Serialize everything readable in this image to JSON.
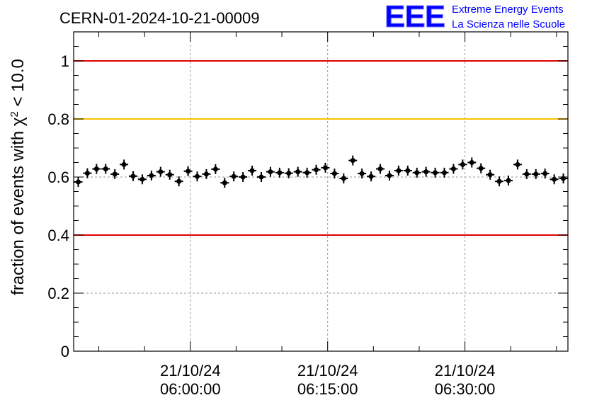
{
  "header": {
    "title": "CERN-01-2024-10-21-00009",
    "logo": {
      "letters": "EEE",
      "line1": "Extreme Energy Events",
      "line2": "La Scienza nelle Scuole",
      "color": "#0000ff"
    }
  },
  "chart_data": {
    "type": "scatter",
    "ylabel_main": "fraction of events with χ",
    "ylabel_sup": "2",
    "ylabel_tail": " < 10.0",
    "ylim": [
      0,
      1.1
    ],
    "yticks": [
      0,
      0.2,
      0.4,
      0.6,
      0.8,
      1
    ],
    "ytick_labels": [
      "0",
      "0.2",
      "0.4",
      "0.6",
      "0.8",
      "1"
    ],
    "xlim": [
      "2024-10-21 05:47:15",
      "2024-10-21 06:41:15"
    ],
    "xticks": [
      {
        "time": "2024-10-21 06:00:00",
        "label_date": "21/10/24",
        "label_time": "06:00:00"
      },
      {
        "time": "2024-10-21 06:15:00",
        "label_date": "21/10/24",
        "label_time": "06:15:00"
      },
      {
        "time": "2024-10-21 06:30:00",
        "label_date": "21/10/24",
        "label_time": "06:30:00"
      }
    ],
    "reference_lines": [
      {
        "y": 1.0,
        "color": "#e00000"
      },
      {
        "y": 0.8,
        "color": "#ffc000"
      },
      {
        "y": 0.4,
        "color": "#e00000"
      }
    ],
    "grid": true,
    "error_bars": true,
    "values": [
      0.583,
      0.613,
      0.628,
      0.628,
      0.61,
      0.643,
      0.603,
      0.592,
      0.605,
      0.618,
      0.608,
      0.585,
      0.62,
      0.602,
      0.61,
      0.627,
      0.58,
      0.602,
      0.6,
      0.622,
      0.6,
      0.618,
      0.615,
      0.613,
      0.618,
      0.615,
      0.625,
      0.632,
      0.612,
      0.595,
      0.657,
      0.612,
      0.602,
      0.628,
      0.605,
      0.622,
      0.622,
      0.615,
      0.618,
      0.615,
      0.615,
      0.628,
      0.643,
      0.65,
      0.63,
      0.608,
      0.585,
      0.588,
      0.643,
      0.61,
      0.61,
      0.612,
      0.592,
      0.595
    ],
    "marker_color": "#000000"
  }
}
